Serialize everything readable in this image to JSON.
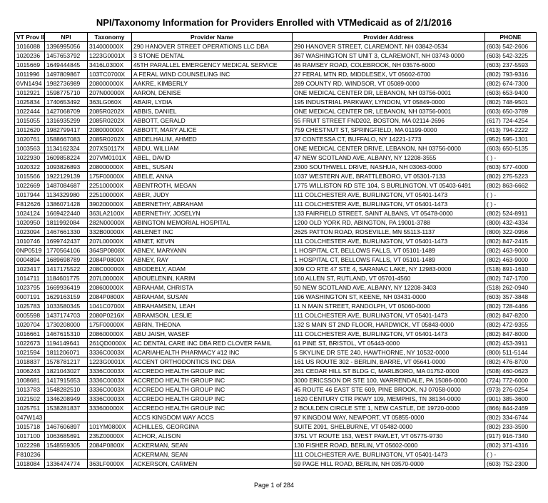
{
  "title": "NPI/Taxonomy Information for Providers Enrolled with VTMedicaid as of 2/1/2016",
  "footer": "Page 1 of 284",
  "columns": [
    "VT Prov ID",
    "NPI",
    "Taxonomy",
    "Provider Name",
    "Provider Address",
    "PHONE"
  ],
  "rows": [
    [
      "1016088",
      "1396995056",
      "314000000X",
      "290 HANOVER STREET OPERATIONS LLC DBA",
      "290 HANOVER STREET, CLAREMONT, NH 03842-0534",
      "(603) 542-2606"
    ],
    [
      "1020236",
      "1457653792",
      "1223G0001X",
      "3 STONE DENTAL",
      "367 WASHINGTON ST UNIT 3, CLAREMONT, NH 03743-0000",
      "(603) 542-3225"
    ],
    [
      "1015669",
      "1649444845",
      "3416L0300X",
      "45TH PARALLEL EMERGENCY MEDICAL SERVICE",
      "46 RAMSEY ROAD, COLEBROOK, NH 03576-6000",
      "(603) 237-5593"
    ],
    [
      "1011996",
      "1497809867",
      "103TC0700X",
      "A FERAL WIND COUNSELING INC",
      "27 FERAL MTN RD, MIDDLESEX, VT 05602-6700",
      "(802) 793-9316"
    ],
    [
      "0VN1494",
      "1982736989",
      "208000000X",
      "AAKRE, KIMBERLY",
      "289 COUNTY RD, WINDSOR, VT 05089-0000",
      "(802) 674-7300"
    ],
    [
      "1012921",
      "1598775710",
      "207N00000X",
      "AARON, DENISE",
      "ONE MEDICAL CENTER DR, LEBANON, NH 03756-0001",
      "(603) 653-9400"
    ],
    [
      "1025834",
      "1740653492",
      "363LG060X",
      "ABAIR, LYDIA",
      "195 INDUSTRIAL PARKWAY, LYNDON, VT 05849-0000",
      "(802) 748-9501"
    ],
    [
      "1022444",
      "1427068709",
      "2085R0202X",
      "ABBIS, DANIEL",
      "ONE MEDICAL CENTER DR, LEBANON, NH 03756-0001",
      "(603) 650-3789"
    ],
    [
      "1015055",
      "1316935299",
      "2085R0202X",
      "ABBOTT, GERALD",
      "55 FRUIT STREET FND202, BOSTON, MA 02114-2696",
      "(617) 724-4254"
    ],
    [
      "1012620",
      "1982799417",
      "208000000X",
      "ABBOTT, MARY ALICE",
      "759 CHESTNUT ST, SPRINGFIELD, MA 01199-0000",
      "(413) 794-2222"
    ],
    [
      "1020761",
      "1588667083",
      "2085R0202X",
      "ABDELHALIM, AHMED",
      "37 CONTESSA CT, BUFFALO, NY 14221-1773",
      "(952) 595-1301"
    ],
    [
      "1003563",
      "1134162324",
      "207XS0117X",
      "ABDU, WILLIAM",
      "ONE MEDICAL CENTER DRIVE, LEBANON, NH 03756-0000",
      "(603) 650-5135"
    ],
    [
      "1022930",
      "1609858224",
      "207VM0101X",
      "ABEL, DAVID",
      "47 NEW SCOTLAND AVE, ALBANY, NY 12208-3555",
      "( ) -"
    ],
    [
      "1020322",
      "1093826893",
      "208000000X",
      "ABEL, SUSAN",
      "2300 SOUTHWELL DRIVE, NASHUA, NH 03063-0000",
      "(603) 577-4000"
    ],
    [
      "1015566",
      "1922129139",
      "175F00000X",
      "ABELE, ANNA",
      "1037 WESTERN AVE, BRATTLEBORO, VT 05301-7133",
      "(802) 275-5223"
    ],
    [
      "1022669",
      "1487084687",
      "225100000X",
      "ABENTROTH, MEGAN",
      "1775 WILLISTON RD STE 104, S BURLINGTON, VT 05403-6491",
      "(802) 863-6662"
    ],
    [
      "1017944",
      "1134329980",
      "225100000X",
      "ABER, JUDY",
      "111 COLCHESTER AVE, BURLINGTON, VT 05401-1473",
      "( ) -"
    ],
    [
      "F812626",
      "1386071428",
      "390200000X",
      "ABERNETHY, ABRAHAM",
      "111 COLCHESTER AVE, BURLINGTON, VT 05401-1473",
      "( ) -"
    ],
    [
      "1024124",
      "1669422440",
      "363LA2100X",
      "ABERNETHY, JOSELYN",
      "133 FAIRFIELD STREET, SAINT ALBANS, VT 05478-0000",
      "(802) 524-8911"
    ],
    [
      "1020950",
      "1811992084",
      "282N00000X",
      "ABINGTON MEMORIAL HOSPITAL",
      "1200 OLD YORK RD, ABINGTON, PA 19001-3788",
      "(800) 432-4334"
    ],
    [
      "1023094",
      "1467661330",
      "332B00000X",
      "ABLENET INC",
      "2625 PATTON ROAD, ROSEVILLE, MN 55113-1137",
      "(800) 322-0956"
    ],
    [
      "1010746",
      "1699742437",
      "207L00000X",
      "ABNET, KEVIN",
      "111 COLCHESTER AVE, BURLINGTON, VT 05401-1473",
      "(802) 847-2415"
    ],
    [
      "0NP0519",
      "1770564106",
      "364SP0808X",
      "ABNEY, MARYANN",
      "1 HOSPITAL CT, BELLOWS FALLS, VT 05101-1489",
      "(802) 463-9000"
    ],
    [
      "0004894",
      "1689698789",
      "2084P0800X",
      "ABNEY, RAY",
      "1 HOSPITAL CT, BELLOWS FALLS, VT 05101-1489",
      "(802) 463-9000"
    ],
    [
      "1023417",
      "1417175522",
      "208C00000X",
      "ABODEELY, ADAM",
      "309 CO RTE 47 STE 4, SARANAC LAKE, NY 12983-0000",
      "(518) 891-1610"
    ],
    [
      "1014711",
      "1184601775",
      "207L00000X",
      "ABOUELENIN, KARIM",
      "160 ALLEN ST, RUTLAND, VT 05701-4560",
      "(802) 747-1700"
    ],
    [
      "1023795",
      "1669936419",
      "208600000X",
      "ABRAHAM, CHRISTA",
      "50 NEW SCOTLAND AVE, ALBANY, NY 12208-3403",
      "(518) 262-0940"
    ],
    [
      "0007191",
      "1629163159",
      "2084P0800X",
      "ABRAHAM, SUSAN",
      "196 WASHINGTON ST, KEENE, NH 03431-0000",
      "(603) 357-3848"
    ],
    [
      "1025783",
      "1033580345",
      "1041C0700X",
      "ABRAHAMSEN, LEAH",
      "11 N MAIN STREET, RANDOLPH, VT 05060-0000",
      "(802) 728-4466"
    ],
    [
      "0005598",
      "1437174703",
      "2080P0216X",
      "ABRAMSON, LESLIE",
      "111 COLCHESTER AVE, BURLINGTON, VT 05401-1473",
      "(802) 847-8200"
    ],
    [
      "1020704",
      "1730208000",
      "175F00000X",
      "ABRIN, THEONA",
      "132 S MAIN ST 2ND FLOOR, HARDWICK, VT 05843-0000",
      "(802) 472-9355"
    ],
    [
      "1016661",
      "1467615310",
      "208600000X",
      "ABU JAISH, WASEF",
      "111 COLCHESTER AVE, BURLINGTON, VT 05401-1473",
      "(802) 847-8000"
    ],
    [
      "1022673",
      "1194149641",
      "261QD0000X",
      "AC DENTAL CARE INC DBA RED CLOVER FAMIL",
      "61 PINE ST, BRISTOL, VT 05443-0000",
      "(802) 453-3911"
    ],
    [
      "1021594",
      "1811206071",
      "3336C0003X",
      "ACARIAHEALTH PHARMACY #12 INC",
      "5 SKYLINE DR STE 240, HAWTHORNE, NY 10532-0000",
      "(800) 511-5144"
    ],
    [
      "1018837",
      "1578781217",
      "1223G0001X",
      "ACCENT ORTHODONTICS INC DBA",
      "161 US ROUTE 302 - BERLIN, BARRE, VT 05641-0000",
      "(802) 476-8700"
    ],
    [
      "1006243",
      "1821043027",
      "3336C0003X",
      "ACCREDO HEALTH GROUP INC",
      "261 CEDAR HILL ST BLDG C, MARLBORO, MA 01752-0000",
      "(508) 460-0623"
    ],
    [
      "1008681",
      "1417915653",
      "3336C0003X",
      "ACCREDO HEALTH GROUP INC",
      "3000 ERICSSON DR STE 100, WARRENDALE, PA 15086-0000",
      "(724) 772-6000"
    ],
    [
      "1013783",
      "1548282510",
      "3336C0003X",
      "ACCREDO HEALTH GROUP INC",
      "45 ROUTE 46 EAST STE 609, PINE BROOK, NJ 07058-0000",
      "(973) 276-0254"
    ],
    [
      "1021502",
      "1346208949",
      "3336C0003X",
      "ACCREDO HEALTH GROUP INC",
      "1620 CENTURY CTR PKWY 109, MEMPHIS, TN 38134-0000",
      "(901) 385-3600"
    ],
    [
      "1025751",
      "1538281837",
      "333600000X",
      "ACCREDO HEALTH GROUP INC",
      "2 BOULDEN CIRCLE STE 1, NEW CASTLE, DE 19720-0000",
      "(866) 844-2469"
    ],
    [
      "047W143",
      "",
      "",
      "ACCS KINGDOM WAY ACCS",
      "97 KINGDOM WAY, NEWPORT, VT 05855-0000",
      "(802) 334-6744"
    ],
    [
      "1015718",
      "1467606897",
      "101YM0800X",
      "ACHILLES, GEORGINA",
      "SUITE 2091, SHELBURNE, VT 05482-0000",
      "(802) 233-3590"
    ],
    [
      "1017100",
      "1063685691",
      "235Z00000X",
      "ACHOR, ALISON",
      "3751 VT ROUTE 153, WEST PAWLET, VT 05775-9730",
      "(917) 916-7340"
    ],
    [
      "1022298",
      "1548559305",
      "2084P0800X",
      "ACKERMAN, SEAN",
      "130 FISHER ROAD, BERLIN, VT 05602-0000",
      "(802) 371-4316"
    ],
    [
      "F810236",
      "",
      "",
      "ACKERMAN, SEAN",
      "111 COLCHESTER AVE, BURLINGTON, VT 05401-1473",
      "( ) -"
    ],
    [
      "1018084",
      "1336474774",
      "363LF0000X",
      "ACKERSON, CARMEN",
      "59 PAGE HILL ROAD, BERLIN, NH 03570-0000",
      "(603) 752-2300"
    ]
  ]
}
